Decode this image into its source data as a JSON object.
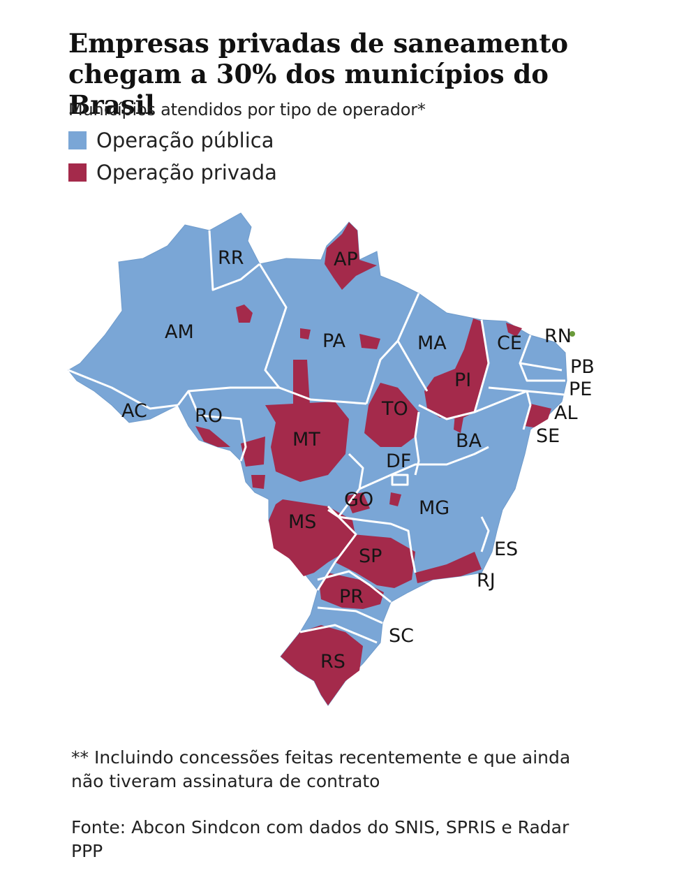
{
  "title": "Empresas privadas de saneamento chegam a 30% dos municípios do Brasil",
  "subtitle": "Municípios atendidos por tipo de operador*",
  "legend": [
    {
      "label": "Operação pública",
      "color": "#7aa6d6"
    },
    {
      "label": "Operação privada",
      "color": "#a42a4b"
    }
  ],
  "colors": {
    "public": "#7aa6d6",
    "private": "#a42a4b",
    "border": "#ffffff",
    "marker": "#6a9a3a"
  },
  "states": {
    "RR": "RR",
    "AP": "AP",
    "AM": "AM",
    "PA": "PA",
    "MA": "MA",
    "CE": "CE",
    "RN": "RN",
    "PB": "PB",
    "PE": "PE",
    "PI": "PI",
    "AC": "AC",
    "RO": "RO",
    "TO": "TO",
    "AL": "AL",
    "SE": "SE",
    "MT": "MT",
    "BA": "BA",
    "DF": "DF",
    "GO": "GO",
    "MG": "MG",
    "MS": "MS",
    "ES": "ES",
    "SP": "SP",
    "RJ": "RJ",
    "PR": "PR",
    "SC": "SC",
    "RS": "RS"
  },
  "footnote": "** Incluindo concessões feitas recentemente e que ainda não tiveram assinatura de contrato",
  "source": "Fonte: Abcon Sindcon com dados do SNIS, SPRIS e Radar PPP"
}
